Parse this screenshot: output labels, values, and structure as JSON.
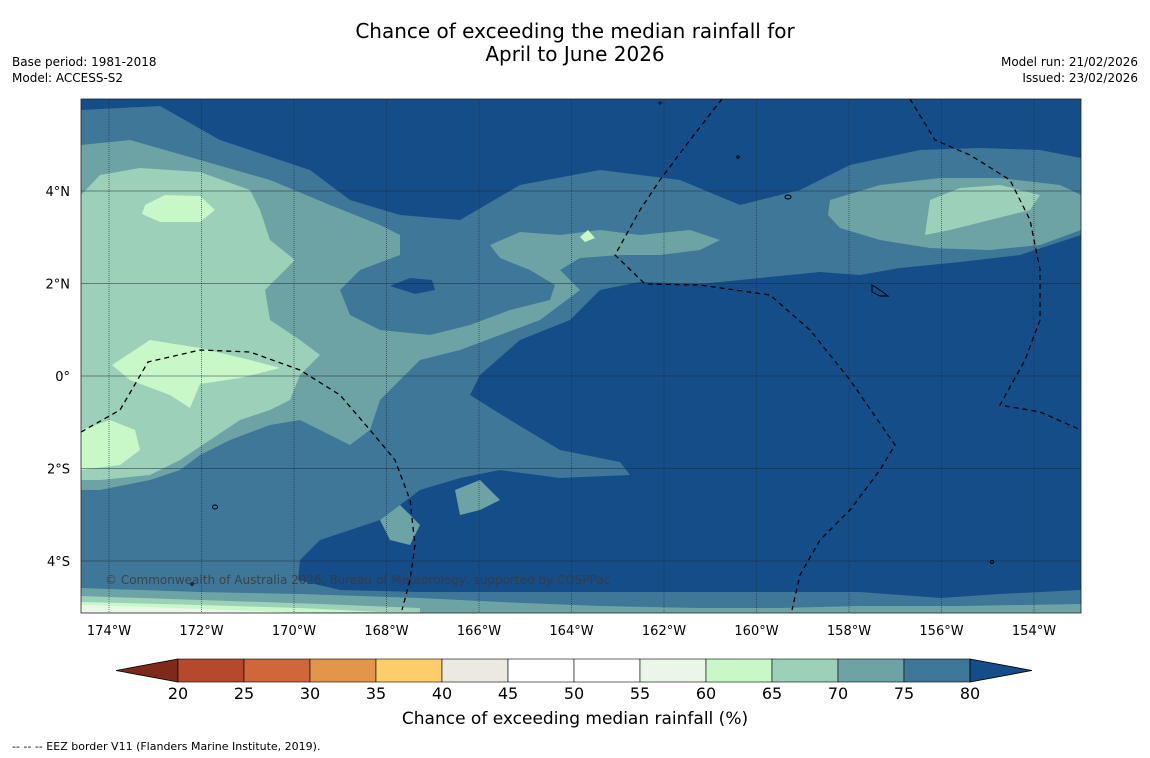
{
  "header": {
    "title_line1": "Chance of exceeding the median rainfall for",
    "title_line2": "April to June 2026",
    "base_period": "Base period: 1981-2018",
    "model": "Model: ACCESS-S2",
    "model_run": "Model run: 21/02/2026",
    "issued": "Issued: 23/02/2026"
  },
  "map": {
    "copyright": "© Commonwealth of Australia 2026, Bureau of Meteorology, supported by COSPPac",
    "lat_labels": [
      "4°N",
      "2°N",
      "0°",
      "2°S",
      "4°S"
    ],
    "lon_labels": [
      "174°W",
      "172°W",
      "170°W",
      "168°W",
      "166°W",
      "164°W",
      "162°W",
      "160°W",
      "158°W",
      "156°W",
      "154°W"
    ]
  },
  "colorbar": {
    "title": "Chance of exceeding median rainfall (%)",
    "ticks": [
      "20",
      "25",
      "30",
      "35",
      "40",
      "45",
      "50",
      "55",
      "60",
      "65",
      "70",
      "75",
      "80"
    ],
    "colors": [
      "#7f2a18",
      "#b5492b",
      "#d0673a",
      "#e3954a",
      "#fdcd6c",
      "#ece8e2",
      "#ffffff",
      "#ffffff",
      "#eaf6e8",
      "#c8f8c8",
      "#9dd0b8",
      "#6ea3a5",
      "#3f7799",
      "#154d88"
    ]
  },
  "palette": {
    "p80": "#154d88",
    "p75": "#3f7799",
    "p70": "#6ea3a5",
    "p65": "#9dd0b8",
    "p60": "#c8f8c8",
    "p55": "#eaf6e8"
  },
  "footnote": "--  --  -- EEZ border V11 (Flanders Marine Institute, 2019)."
}
